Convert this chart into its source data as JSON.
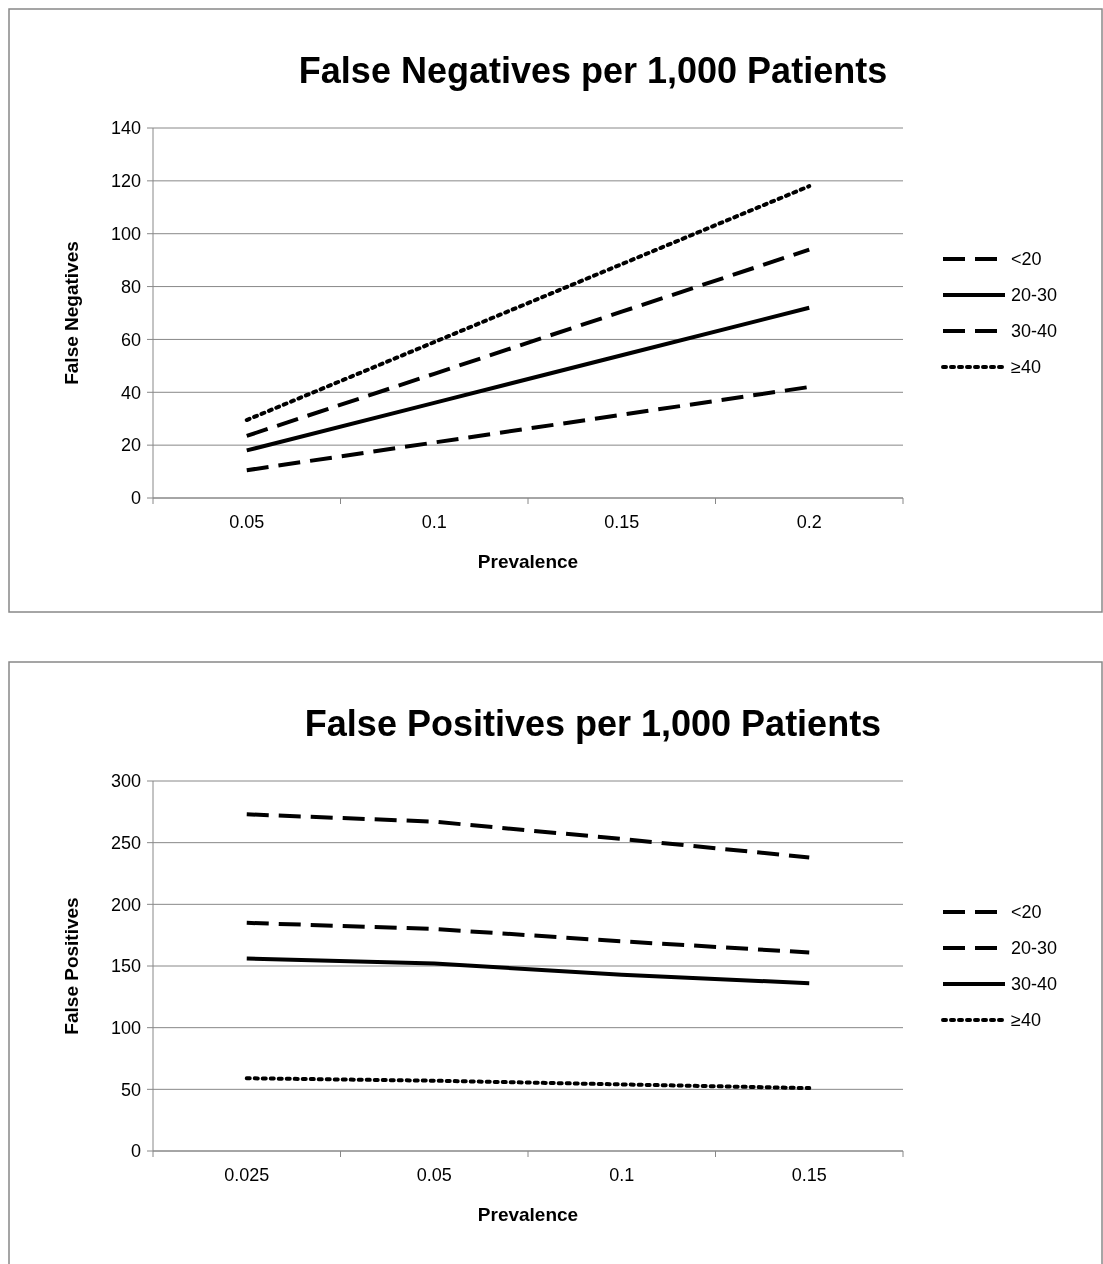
{
  "chart_data": [
    {
      "type": "line",
      "title": "False Negatives per 1,000 Patients",
      "xlabel": "Prevalence",
      "ylabel": "False Negatives",
      "categories": [
        "0.05",
        "0.1",
        "0.15",
        "0.2"
      ],
      "ylim": [
        0,
        140
      ],
      "yticks": [
        0,
        20,
        40,
        60,
        80,
        100,
        120,
        140
      ],
      "grid": "y",
      "legend": "right",
      "marker": "none",
      "series": [
        {
          "name": "<20",
          "color": "#000000",
          "line_style": "dashed",
          "values": [
            10.5,
            21,
            31.5,
            42
          ]
        },
        {
          "name": "20-30",
          "color": "#000000",
          "line_style": "solid",
          "values": [
            18,
            36,
            54,
            72
          ]
        },
        {
          "name": "30-40",
          "color": "#000000",
          "line_style": "dashed",
          "values": [
            23.5,
            47,
            70.5,
            94
          ]
        },
        {
          "name": "≥40",
          "color": "#000000",
          "line_style": "dotted",
          "values": [
            29.5,
            59,
            88.5,
            118
          ]
        }
      ]
    },
    {
      "type": "line",
      "title": "False Positives per 1,000 Patients",
      "xlabel": "Prevalence",
      "ylabel": "False Positives",
      "categories": [
        "0.025",
        "0.05",
        "0.1",
        "0.15"
      ],
      "ylim": [
        0,
        300
      ],
      "yticks": [
        0,
        50,
        100,
        150,
        200,
        250,
        300
      ],
      "grid": "y",
      "legend": "right",
      "marker": "none",
      "series": [
        {
          "name": "<20",
          "color": "#000000",
          "line_style": "dashed",
          "values": [
            273,
            267,
            253,
            238
          ]
        },
        {
          "name": "20-30",
          "color": "#000000",
          "line_style": "dashed",
          "values": [
            185,
            180,
            170,
            161
          ]
        },
        {
          "name": "30-40",
          "color": "#000000",
          "line_style": "solid",
          "values": [
            156,
            152,
            143,
            136
          ]
        },
        {
          "name": "≥40",
          "color": "#000000",
          "line_style": "dotted",
          "values": [
            59,
            57,
            54,
            51
          ]
        }
      ]
    }
  ]
}
